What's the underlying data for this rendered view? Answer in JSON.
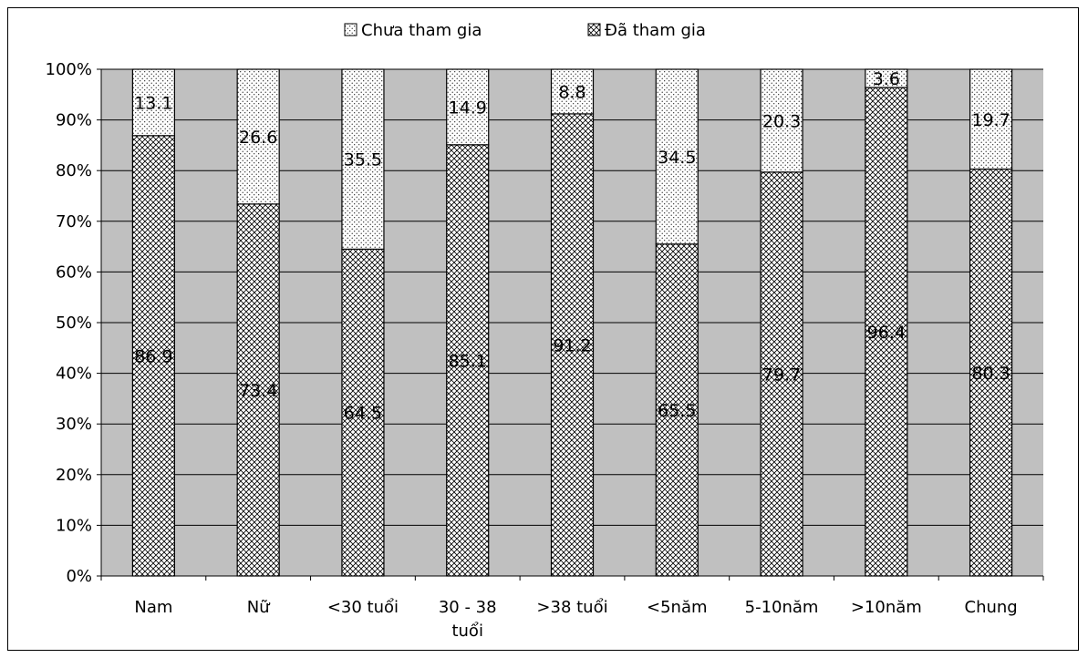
{
  "chart_data": {
    "type": "bar",
    "stacked": true,
    "percent": true,
    "categories": [
      "Nam",
      "Nữ",
      "<30 tuổi",
      "30 - 38 tuổi",
      ">38 tuổi",
      "<5năm",
      "5-10năm",
      ">10năm",
      "Chung"
    ],
    "series": [
      {
        "name": "Đã tham gia",
        "values": [
          86.9,
          73.4,
          64.5,
          85.1,
          91.2,
          65.5,
          79.7,
          96.4,
          80.3
        ],
        "pattern": "crosshatch"
      },
      {
        "name": "Chưa tham gia",
        "values": [
          13.1,
          26.6,
          35.5,
          14.9,
          8.8,
          34.5,
          20.3,
          3.6,
          19.7
        ],
        "pattern": "dots"
      }
    ],
    "legend": {
      "position": "top",
      "order": [
        "Chưa tham gia",
        "Đã tham gia"
      ]
    },
    "yticks": [
      "0%",
      "10%",
      "20%",
      "30%",
      "40%",
      "50%",
      "60%",
      "70%",
      "80%",
      "90%",
      "100%"
    ],
    "ylim": [
      0,
      100
    ],
    "grid": true,
    "plot_background": "#c0c0c0"
  }
}
